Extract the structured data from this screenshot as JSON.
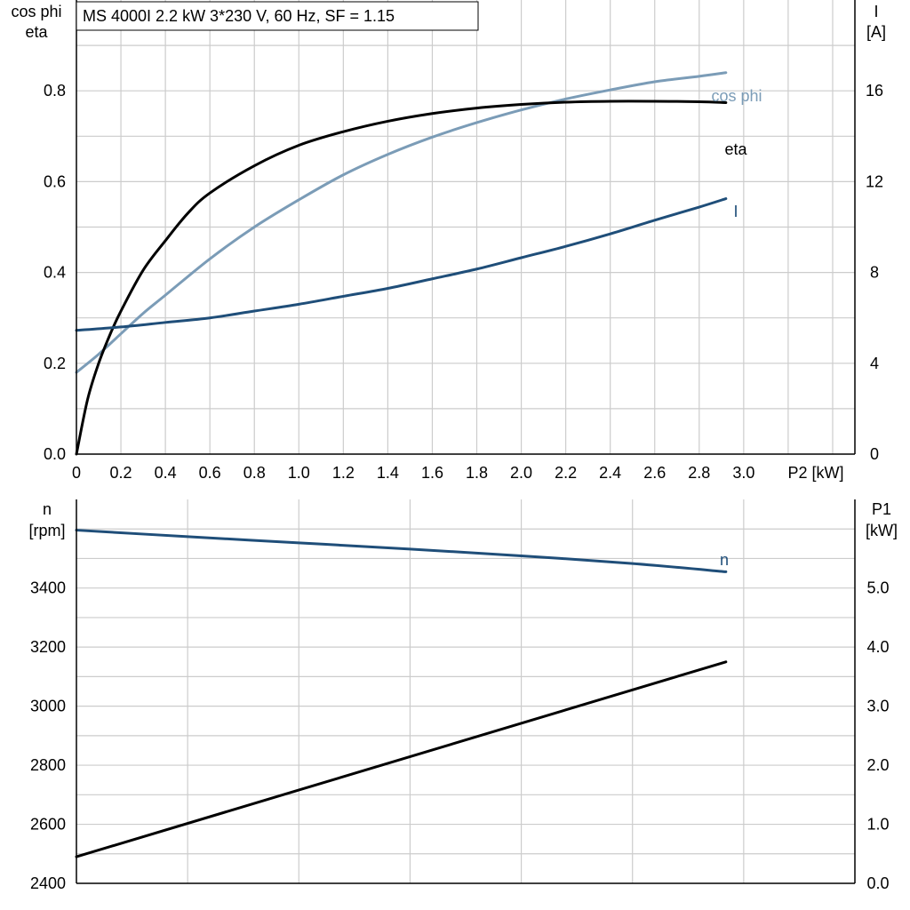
{
  "title": "MS 4000I   2.2 kW   3*230 V, 60 Hz, SF = 1.15",
  "chart_data": [
    {
      "type": "line",
      "panel": "top",
      "x_label": "P2 [kW]",
      "xlim": [
        0,
        3.5
      ],
      "x_ticks": [
        "0",
        "0.2",
        "0.4",
        "0.6",
        "0.8",
        "1.0",
        "1.2",
        "1.4",
        "1.6",
        "1.8",
        "2.0",
        "2.2",
        "2.4",
        "2.6",
        "2.8",
        "3.0"
      ],
      "x_tick_values": [
        0,
        0.2,
        0.4,
        0.6,
        0.8,
        1.0,
        1.2,
        1.4,
        1.6,
        1.8,
        2.0,
        2.2,
        2.4,
        2.6,
        2.8,
        3.0
      ],
      "left_axis": {
        "label_line1": "cos phi",
        "label_line2": "eta",
        "ylim": [
          0,
          1.0
        ],
        "ticks": [
          "0.0",
          "0.2",
          "0.4",
          "0.6",
          "0.8"
        ],
        "tick_values": [
          0,
          0.2,
          0.4,
          0.6,
          0.8
        ]
      },
      "right_axis": {
        "label_line1": "I",
        "label_line2": "[A]",
        "ylim": [
          0,
          20
        ],
        "ticks": [
          "0",
          "4",
          "8",
          "12",
          "16"
        ],
        "tick_values": [
          0,
          4,
          8,
          12,
          16
        ]
      },
      "grid": true,
      "series": [
        {
          "name": "cos phi",
          "axis": "left",
          "color": "#7b9cb7",
          "x": [
            0,
            0.1,
            0.2,
            0.3,
            0.4,
            0.6,
            0.8,
            1.0,
            1.2,
            1.4,
            1.6,
            1.8,
            2.0,
            2.2,
            2.4,
            2.6,
            2.8,
            2.92
          ],
          "y": [
            0.18,
            0.22,
            0.265,
            0.31,
            0.35,
            0.43,
            0.5,
            0.56,
            0.615,
            0.66,
            0.698,
            0.73,
            0.758,
            0.782,
            0.802,
            0.82,
            0.832,
            0.84
          ]
        },
        {
          "name": "eta",
          "axis": "left",
          "color": "#000000",
          "x": [
            0,
            0.05,
            0.1,
            0.15,
            0.2,
            0.3,
            0.4,
            0.5,
            0.6,
            0.8,
            1.0,
            1.2,
            1.4,
            1.6,
            1.8,
            2.0,
            2.2,
            2.4,
            2.6,
            2.8,
            2.92
          ],
          "y": [
            0,
            0.12,
            0.2,
            0.262,
            0.315,
            0.405,
            0.47,
            0.53,
            0.575,
            0.635,
            0.68,
            0.71,
            0.733,
            0.75,
            0.762,
            0.77,
            0.775,
            0.777,
            0.777,
            0.776,
            0.774
          ]
        },
        {
          "name": "I",
          "axis": "right",
          "color": "#1f4e79",
          "x": [
            0,
            0.2,
            0.4,
            0.6,
            0.8,
            1.0,
            1.2,
            1.4,
            1.6,
            1.8,
            2.0,
            2.2,
            2.4,
            2.6,
            2.8,
            2.92
          ],
          "y": [
            5.45,
            5.6,
            5.8,
            6.0,
            6.3,
            6.6,
            6.95,
            7.3,
            7.72,
            8.15,
            8.65,
            9.15,
            9.7,
            10.3,
            10.88,
            11.25
          ]
        }
      ]
    },
    {
      "type": "line",
      "panel": "bottom",
      "xlim": [
        0,
        3.5
      ],
      "x_grid_values": [
        0.5,
        1.0,
        1.5,
        2.0,
        2.5,
        3.0
      ],
      "left_axis": {
        "label_line1": "n",
        "label_line2": "[rpm]",
        "ylim": [
          2400,
          3700
        ],
        "ticks": [
          "2400",
          "2600",
          "2800",
          "3000",
          "3200",
          "3400"
        ],
        "tick_values": [
          2400,
          2600,
          2800,
          3000,
          3200,
          3400
        ]
      },
      "right_axis": {
        "label_line1": "P1",
        "label_line2": "[kW]",
        "ylim": [
          0,
          6.5
        ],
        "ticks": [
          "0.0",
          "1.0",
          "2.0",
          "3.0",
          "4.0",
          "5.0"
        ],
        "tick_values": [
          0,
          1,
          2,
          3,
          4,
          5
        ]
      },
      "grid": true,
      "series": [
        {
          "name": "n",
          "axis": "left",
          "color": "#1f4e79",
          "x": [
            0,
            0.5,
            1.0,
            1.5,
            2.0,
            2.5,
            2.92
          ],
          "y": [
            3596,
            3574,
            3553,
            3532,
            3509,
            3483,
            3455
          ]
        },
        {
          "name": "",
          "axis": "right",
          "color": "#000000",
          "x": [
            0,
            2.92
          ],
          "y": [
            0.45,
            3.75
          ]
        }
      ]
    }
  ]
}
